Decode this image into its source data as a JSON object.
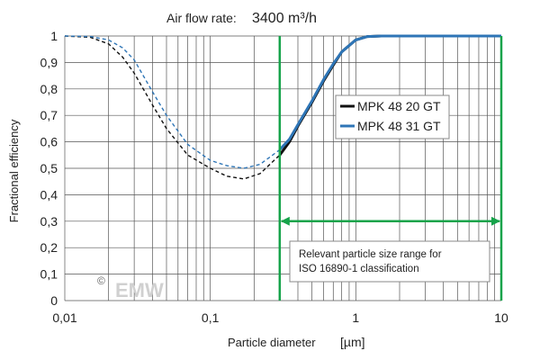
{
  "chart_data": {
    "type": "line",
    "title_label": "Air flow rate:",
    "title_value": "3400 m³/h",
    "xlabel": "Particle diameter",
    "xlabel_unit": "[µm]",
    "ylabel": "Fractional efficiency",
    "x_scale": "log",
    "xlim": [
      0.01,
      10
    ],
    "ylim": [
      0,
      1
    ],
    "x_ticks": [
      {
        "value": 0.01,
        "label": "0,01"
      },
      {
        "value": 0.1,
        "label": "0,1"
      },
      {
        "value": 1,
        "label": "1"
      },
      {
        "value": 10,
        "label": "10"
      }
    ],
    "y_ticks": [
      {
        "value": 0,
        "label": "0"
      },
      {
        "value": 0.1,
        "label": "0,1"
      },
      {
        "value": 0.2,
        "label": "0,2"
      },
      {
        "value": 0.3,
        "label": "0,3"
      },
      {
        "value": 0.4,
        "label": "0,4"
      },
      {
        "value": 0.5,
        "label": "0,5"
      },
      {
        "value": 0.6,
        "label": "0,6"
      },
      {
        "value": 0.7,
        "label": "0,7"
      },
      {
        "value": 0.8,
        "label": "0,8"
      },
      {
        "value": 0.9,
        "label": "0,9"
      },
      {
        "value": 1,
        "label": "1"
      }
    ],
    "grid": true,
    "legend_position": "right-center",
    "series": [
      {
        "name": "MPK 48 20 GT",
        "color": "#111111",
        "x": [
          0.01,
          0.015,
          0.02,
          0.025,
          0.03,
          0.04,
          0.05,
          0.07,
          0.1,
          0.13,
          0.17,
          0.22,
          0.3,
          0.35,
          0.4,
          0.5,
          0.6,
          0.7,
          0.8,
          1.0,
          1.2,
          1.5,
          10
        ],
        "y": [
          1.0,
          0.995,
          0.97,
          0.92,
          0.86,
          0.74,
          0.65,
          0.55,
          0.5,
          0.47,
          0.46,
          0.48,
          0.55,
          0.6,
          0.66,
          0.75,
          0.83,
          0.89,
          0.94,
          0.985,
          0.998,
          1.0,
          1.0
        ],
        "solid_from": 0.3
      },
      {
        "name": "MPK 48 31 GT",
        "color": "#2e75b6",
        "x": [
          0.01,
          0.015,
          0.02,
          0.025,
          0.03,
          0.04,
          0.05,
          0.07,
          0.1,
          0.13,
          0.17,
          0.22,
          0.3,
          0.35,
          0.4,
          0.5,
          0.6,
          0.7,
          0.8,
          1.0,
          1.2,
          1.5,
          10
        ],
        "y": [
          1.0,
          0.998,
          0.985,
          0.955,
          0.91,
          0.79,
          0.7,
          0.59,
          0.53,
          0.51,
          0.5,
          0.515,
          0.57,
          0.61,
          0.665,
          0.755,
          0.835,
          0.895,
          0.94,
          0.985,
          0.998,
          1.0,
          1.0
        ],
        "solid_from": 0.3
      }
    ],
    "vertical_markers": [
      {
        "x": 0.3,
        "color": "#16a34a"
      },
      {
        "x": 10,
        "color": "#16a34a"
      }
    ],
    "range_arrow": {
      "x_start": 0.3,
      "x_end": 10,
      "y": 0.3,
      "color": "#16a34a"
    },
    "annotation": {
      "line1": "Relevant particle size range for",
      "line2": "ISO 16890-1 classification"
    },
    "watermark": {
      "symbol": "©",
      "text": "EMW"
    }
  }
}
